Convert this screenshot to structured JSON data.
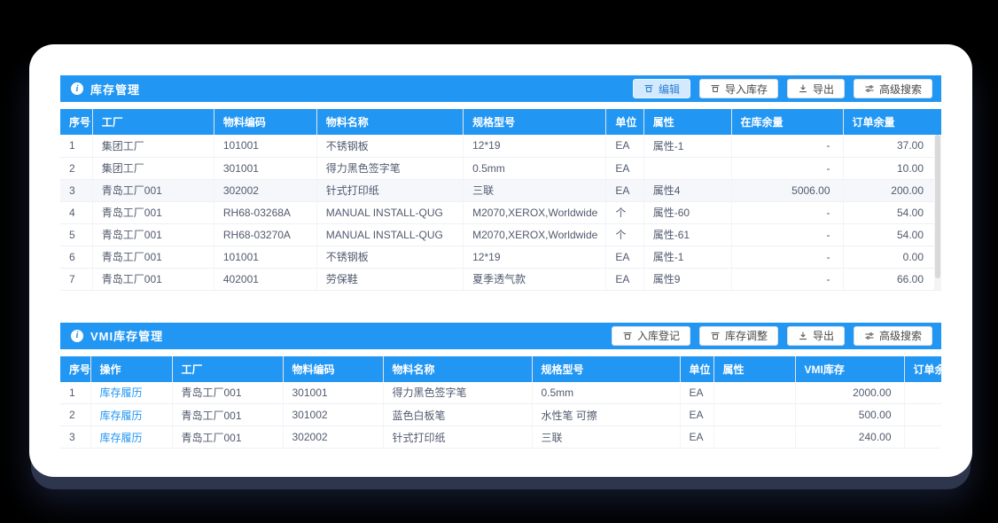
{
  "colors": {
    "accent": "#2196f3",
    "link": "#2196f3",
    "active_button_bg": "#d3e9fd",
    "row_highlight": "#f5f7fb"
  },
  "section1": {
    "title": "库存管理",
    "buttons": [
      {
        "label": "编辑",
        "icon": "edit-box-icon",
        "active": true
      },
      {
        "label": "导入库存",
        "icon": "import-box-icon",
        "active": false
      },
      {
        "label": "导出",
        "icon": "download-icon",
        "active": false
      },
      {
        "label": "高级搜索",
        "icon": "filter-icon",
        "active": false
      }
    ],
    "columns": [
      "序号",
      "工厂",
      "物料编码",
      "物料名称",
      "规格型号",
      "单位",
      "属性",
      "在库余量",
      "订单余量"
    ],
    "highlighted_row_index": 2,
    "rows": [
      [
        "1",
        "集团工厂",
        "101001",
        "不锈钢板",
        "12*19",
        "EA",
        "属性-1",
        "-",
        "37.00"
      ],
      [
        "2",
        "集团工厂",
        "301001",
        "得力黑色签字笔",
        "0.5mm",
        "EA",
        "",
        "-",
        "10.00"
      ],
      [
        "3",
        "青岛工厂001",
        "302002",
        "针式打印纸",
        "三联",
        "EA",
        "属性4",
        "5006.00",
        "200.00"
      ],
      [
        "4",
        "青岛工厂001",
        "RH68-03268A",
        "MANUAL INSTALL-QUG",
        "M2070,XEROX,Worldwide",
        "个",
        "属性-60",
        "-",
        "54.00"
      ],
      [
        "5",
        "青岛工厂001",
        "RH68-03270A",
        "MANUAL INSTALL-QUG",
        "M2070,XEROX,Worldwide",
        "个",
        "属性-61",
        "-",
        "54.00"
      ],
      [
        "6",
        "青岛工厂001",
        "101001",
        "不锈钢板",
        "12*19",
        "EA",
        "属性-1",
        "-",
        "0.00"
      ],
      [
        "7",
        "青岛工厂001",
        "402001",
        "劳保鞋",
        "夏季透气款",
        "EA",
        "属性9",
        "-",
        "66.00"
      ]
    ]
  },
  "section2": {
    "title": "VMI库存管理",
    "buttons": [
      {
        "label": "入库登记",
        "icon": "inbound-box-icon",
        "active": false
      },
      {
        "label": "库存调整",
        "icon": "adjust-box-icon",
        "active": false
      },
      {
        "label": "导出",
        "icon": "download-icon",
        "active": false
      },
      {
        "label": "高级搜索",
        "icon": "filter-icon",
        "active": false
      }
    ],
    "columns": [
      "序号",
      "操作",
      "工厂",
      "物料编码",
      "物料名称",
      "规格型号",
      "单位",
      "属性",
      "VMI库存",
      "订单余量"
    ],
    "operation_link_label": "库存履历",
    "rows": [
      [
        "1",
        "库存履历",
        "青岛工厂001",
        "301001",
        "得力黑色签字笔",
        "0.5mm",
        "EA",
        "",
        "2000.00",
        ""
      ],
      [
        "2",
        "库存履历",
        "青岛工厂001",
        "301002",
        "蓝色白板笔",
        "水性笔 可擦",
        "EA",
        "",
        "500.00",
        ""
      ],
      [
        "3",
        "库存履历",
        "青岛工厂001",
        "302002",
        "针式打印纸",
        "三联",
        "EA",
        "",
        "240.00",
        ""
      ]
    ]
  }
}
